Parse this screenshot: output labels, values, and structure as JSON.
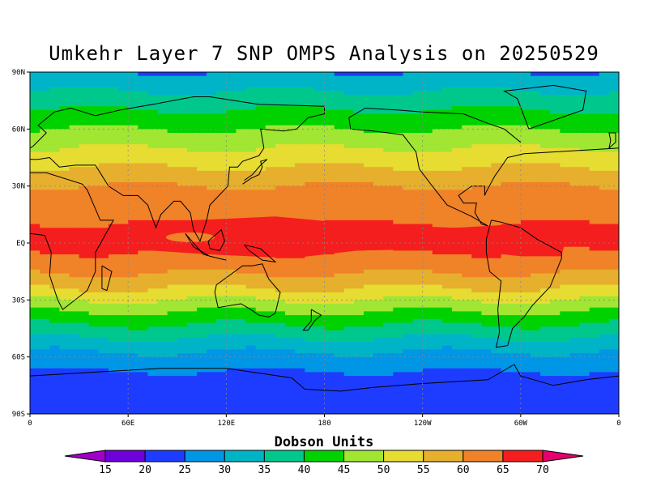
{
  "title": "Umkehr Layer 7 SNP OMPS Analysis on 20250529",
  "colorbar": {
    "title": "Dobson Units",
    "levels": [
      15,
      20,
      25,
      30,
      35,
      40,
      45,
      50,
      55,
      60,
      65,
      70
    ],
    "labels": [
      "15",
      "20",
      "25",
      "30",
      "35",
      "40",
      "45",
      "50",
      "55",
      "60",
      "65",
      "70"
    ],
    "colors": [
      "#a000c8",
      "#6e00dc",
      "#1e3cff",
      "#0096e6",
      "#00b4c8",
      "#00c88c",
      "#00d200",
      "#a0e632",
      "#e6dc32",
      "#e6af2d",
      "#f08228",
      "#f51e1e",
      "#e6006e"
    ]
  },
  "lat_labels": [
    "90N",
    "60N",
    "30N",
    "EQ",
    "30S",
    "60S",
    "90S"
  ],
  "lon_labels": [
    "0",
    "60E",
    "120E",
    "180",
    "120W",
    "60W",
    "0"
  ],
  "chart_data": {
    "type": "heatmap",
    "title": "Umkehr Layer 7 SNP OMPS Analysis on 20250529",
    "units": "Dobson Units",
    "xlim": [
      0,
      360
    ],
    "ylim": [
      -90,
      90
    ],
    "x_tick_labels": [
      "0",
      "60E",
      "120E",
      "180",
      "120W",
      "60W",
      "0"
    ],
    "y_tick_labels": [
      "90N",
      "60N",
      "30N",
      "EQ",
      "30S",
      "60S",
      "90S"
    ],
    "grid": true,
    "zonal_profile": {
      "lat": [
        90,
        80,
        70,
        60,
        50,
        40,
        30,
        20,
        10,
        0,
        -10,
        -20,
        -30,
        -40,
        -50,
        -60,
        -70,
        -80,
        -90
      ],
      "value": [
        30,
        35,
        40,
        45,
        50,
        55,
        60,
        63,
        65,
        67,
        63,
        58,
        50,
        42,
        35,
        28,
        24,
        23,
        23
      ]
    },
    "max_region": {
      "lon_range": [
        55,
        328
      ],
      "lat_range": [
        -10,
        14
      ],
      "value": ">65"
    },
    "min_region": {
      "lat_range": [
        -90,
        -60
      ],
      "value": "20-25"
    }
  }
}
